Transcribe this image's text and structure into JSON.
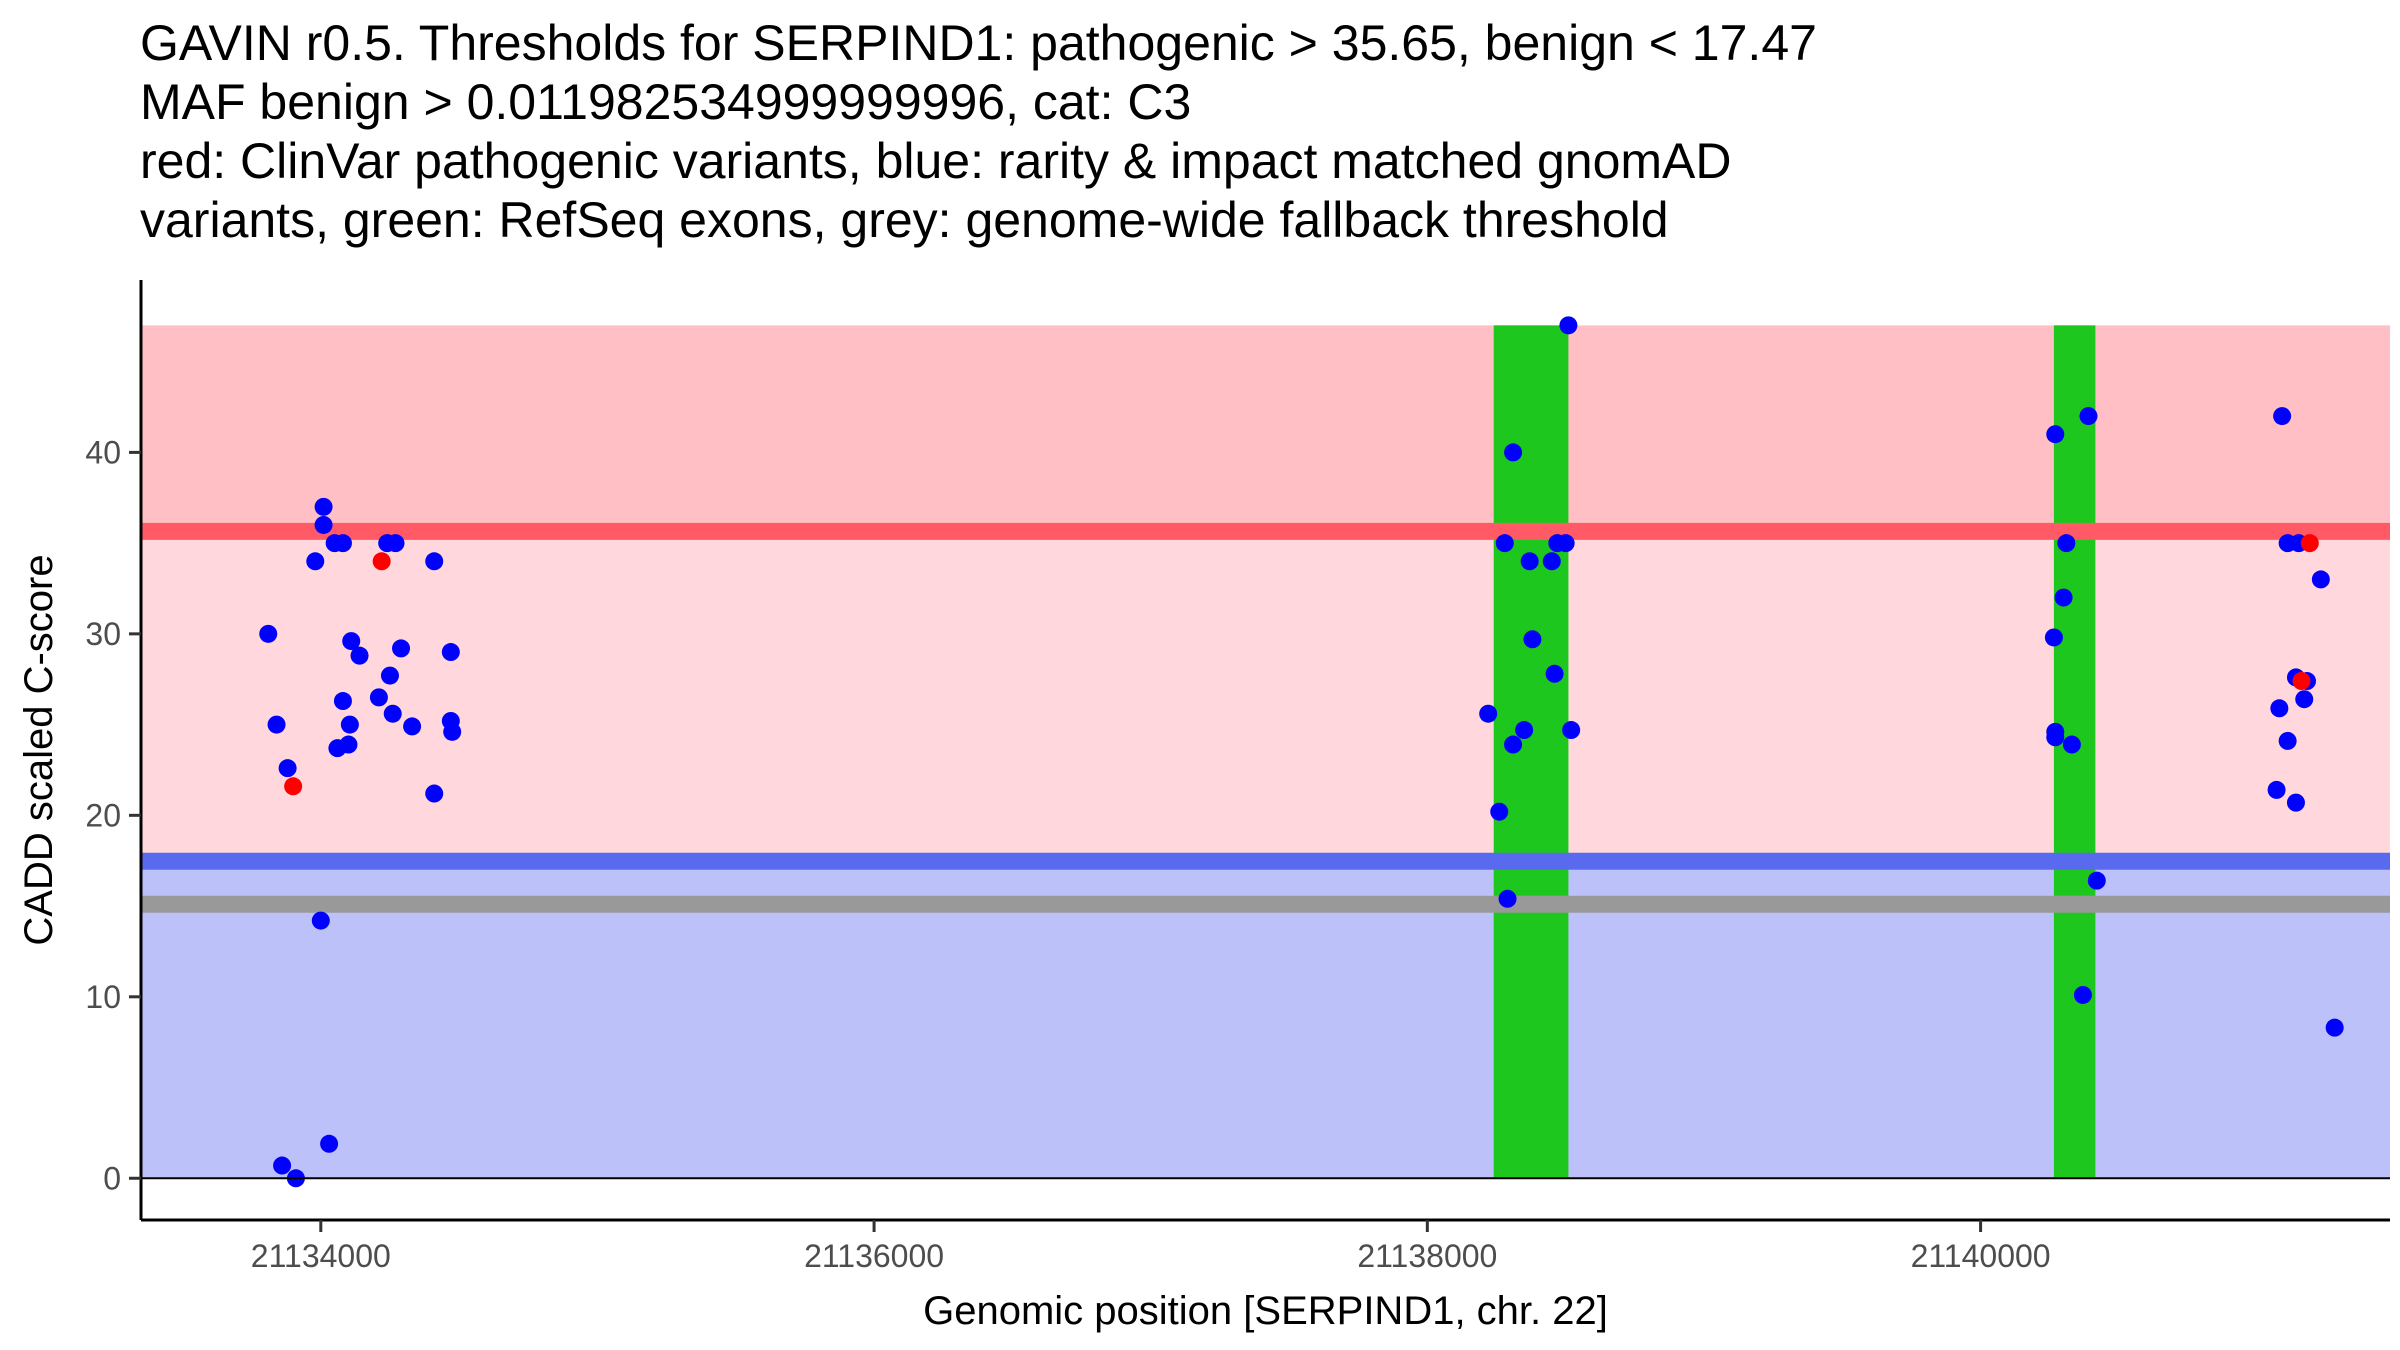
{
  "title_lines": [
    "GAVIN r0.5. Thresholds for SERPIND1: pathogenic > 35.65, benign < 17.47",
    "MAF benign > 0.011982534999999996, cat: C3",
    "red: ClinVar pathogenic variants, blue: rarity & impact matched gnomAD",
    "variants, green: RefSeq exons, grey: genome-wide fallback threshold"
  ],
  "chart_data": {
    "type": "scatter",
    "xlabel": "Genomic position [SERPIND1, chr. 22]",
    "ylabel": "CADD scaled C-score",
    "xlim": [
      21133350,
      21141480
    ],
    "ylim": [
      -2.3,
      49.5
    ],
    "xticks": [
      21134000,
      21136000,
      21138000,
      21140000
    ],
    "yticks": [
      0,
      10,
      20,
      30,
      40
    ],
    "grid": false,
    "colors": {
      "pathogenic_region": "#ffbfc4",
      "middle_region": "#ffd7dc",
      "benign_region": "#bcc1fa",
      "pathogenic_line": "#ff5a66",
      "benign_line": "#5a6aef",
      "fallback_line": "#999999",
      "exon": "#1ec71e",
      "clinvar_point": "#ff0000",
      "gnomad_point": "#0000ff"
    },
    "regions": [
      {
        "name": "pathogenic",
        "y0": 35.65,
        "y1": 47
      },
      {
        "name": "middle",
        "y0": 17.47,
        "y1": 35.65
      },
      {
        "name": "benign",
        "y0": 0,
        "y1": 17.47
      }
    ],
    "thresholds": {
      "pathogenic": 35.65,
      "benign": 17.47,
      "fallback": 15.1
    },
    "exons": [
      {
        "start": 21138240,
        "end": 21138510
      },
      {
        "start": 21140265,
        "end": 21140415
      }
    ],
    "series": [
      {
        "name": "gnomAD",
        "points": [
          [
            21133810,
            30
          ],
          [
            21133840,
            25
          ],
          [
            21133880,
            22.6
          ],
          [
            21133980,
            34
          ],
          [
            21134010,
            37
          ],
          [
            21134010,
            36
          ],
          [
            21134000,
            14.2
          ],
          [
            21134050,
            35
          ],
          [
            21134080,
            35
          ],
          [
            21134080,
            26.3
          ],
          [
            21134110,
            29.6
          ],
          [
            21134105,
            25
          ],
          [
            21134060,
            23.7
          ],
          [
            21134100,
            23.9
          ],
          [
            21134140,
            28.8
          ],
          [
            21134210,
            26.5
          ],
          [
            21134240,
            35
          ],
          [
            21134270,
            35
          ],
          [
            21134250,
            27.7
          ],
          [
            21134260,
            25.6
          ],
          [
            21134290,
            29.2
          ],
          [
            21134330,
            24.9
          ],
          [
            21134410,
            34
          ],
          [
            21134410,
            21.2
          ],
          [
            21134470,
            29
          ],
          [
            21134470,
            25.2
          ],
          [
            21134475,
            24.6
          ],
          [
            21133910,
            0
          ],
          [
            21133860,
            0.7
          ],
          [
            21134030,
            1.9
          ],
          [
            21138220,
            25.6
          ],
          [
            21138260,
            20.2
          ],
          [
            21138280,
            35
          ],
          [
            21138290,
            15.4
          ],
          [
            21138310,
            40
          ],
          [
            21138310,
            23.9
          ],
          [
            21138350,
            24.7
          ],
          [
            21138370,
            34
          ],
          [
            21138380,
            29.7
          ],
          [
            21138450,
            34
          ],
          [
            21138460,
            27.8
          ],
          [
            21138470,
            35
          ],
          [
            21138500,
            35
          ],
          [
            21138520,
            24.7
          ],
          [
            21138510,
            47
          ],
          [
            21140270,
            41
          ],
          [
            21140265,
            29.8
          ],
          [
            21140270,
            24.6
          ],
          [
            21140270,
            24.3
          ],
          [
            21140310,
            35
          ],
          [
            21140300,
            32
          ],
          [
            21140330,
            23.9
          ],
          [
            21140390,
            42
          ],
          [
            21140420,
            16.4
          ],
          [
            21140370,
            10.1
          ],
          [
            21141090,
            42
          ],
          [
            21141080,
            25.9
          ],
          [
            21141070,
            21.4
          ],
          [
            21141110,
            35
          ],
          [
            21141110,
            24.1
          ],
          [
            21141150,
            35
          ],
          [
            21141140,
            27.6
          ],
          [
            21141140,
            20.7
          ],
          [
            21141170,
            26.4
          ],
          [
            21141180,
            27.4
          ],
          [
            21141230,
            33
          ],
          [
            21141280,
            8.3
          ]
        ]
      },
      {
        "name": "ClinVar",
        "points": [
          [
            21133900,
            21.6
          ],
          [
            21134220,
            34
          ],
          [
            21141190,
            35
          ],
          [
            21141160,
            27.4
          ]
        ]
      }
    ]
  }
}
